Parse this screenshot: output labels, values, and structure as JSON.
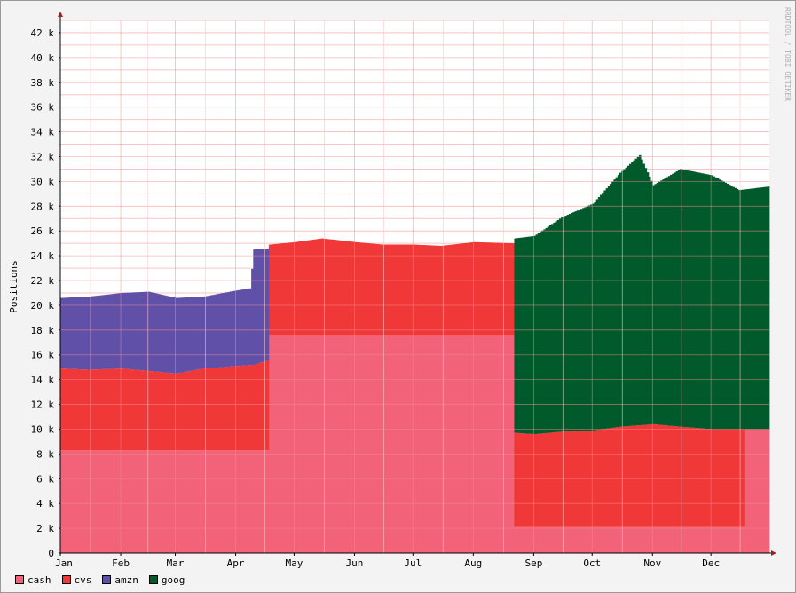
{
  "chart_data": {
    "type": "area",
    "stacked": true,
    "ylabel": "Positions",
    "watermark": "RRDTOOL / TOBI OETIKER",
    "ylim": [
      0,
      43000
    ],
    "y_ticks": [
      0,
      2000,
      4000,
      6000,
      8000,
      10000,
      12000,
      14000,
      16000,
      18000,
      20000,
      22000,
      24000,
      26000,
      28000,
      30000,
      32000,
      34000,
      36000,
      38000,
      40000,
      42000
    ],
    "y_tick_labels": [
      "0",
      "2 k",
      "4 k",
      "6 k",
      "8 k",
      "10 k",
      "12 k",
      "14 k",
      "16 k",
      "18 k",
      "20 k",
      "22 k",
      "24 k",
      "26 k",
      "28 k",
      "30 k",
      "32 k",
      "34 k",
      "36 k",
      "38 k",
      "40 k",
      "42 k"
    ],
    "x_month_labels": [
      "Jan",
      "Feb",
      "Mar",
      "Apr",
      "May",
      "Jun",
      "Jul",
      "Aug",
      "Sep",
      "Oct",
      "Nov",
      "Dec"
    ],
    "xlim": [
      "2013-01-01",
      "2013-12-31"
    ],
    "grid": true,
    "legend_position": "bottom-left",
    "series": [
      {
        "name": "cash",
        "color": "#f2637a",
        "segments": [
          {
            "from": "2013-01-01",
            "to": "2013-04-18",
            "x": [
              "2013-01-01",
              "2013-04-18"
            ],
            "y": [
              8300,
              8300
            ]
          },
          {
            "from": "2013-04-18",
            "to": "2013-08-22",
            "x": [
              "2013-04-18",
              "2013-08-22"
            ],
            "y": [
              17600,
              17600
            ]
          },
          {
            "from": "2013-08-22",
            "to": "2013-12-18",
            "x": [
              "2013-08-22",
              "2013-12-18"
            ],
            "y": [
              2100,
              2100
            ]
          },
          {
            "from": "2013-12-18",
            "to": "2013-12-31",
            "x": [
              "2013-12-18",
              "2013-12-31"
            ],
            "y": [
              10000,
              10000
            ]
          }
        ]
      },
      {
        "name": "cvs",
        "color": "#f03839",
        "segments": [
          {
            "from": "2013-01-01",
            "to": "2013-04-18",
            "x": [
              "2013-01-01",
              "2013-01-15",
              "2013-02-01",
              "2013-02-15",
              "2013-03-01",
              "2013-03-15",
              "2013-04-01",
              "2013-04-10",
              "2013-04-18"
            ],
            "y": [
              6600,
              6500,
              6600,
              6400,
              6200,
              6600,
              6800,
              6900,
              7300
            ]
          },
          {
            "from": "2013-04-18",
            "to": "2013-08-22",
            "x": [
              "2013-04-18",
              "2013-05-01",
              "2013-05-15",
              "2013-06-01",
              "2013-06-15",
              "2013-07-01",
              "2013-07-15",
              "2013-08-01",
              "2013-08-22"
            ],
            "y": [
              7300,
              7500,
              7800,
              7500,
              7300,
              7300,
              7200,
              7500,
              7400
            ]
          },
          {
            "from": "2013-08-22",
            "to": "2013-12-18",
            "x": [
              "2013-08-22",
              "2013-09-01",
              "2013-09-15",
              "2013-10-01",
              "2013-10-15",
              "2013-11-01",
              "2013-11-15",
              "2013-12-01",
              "2013-12-18"
            ],
            "y": [
              7600,
              7500,
              7700,
              7800,
              8100,
              8300,
              8100,
              7900,
              7900
            ]
          }
        ]
      },
      {
        "name": "amzn",
        "color": "#6050a8",
        "segments": [
          {
            "from": "2013-01-01",
            "to": "2013-04-18",
            "x": [
              "2013-01-01",
              "2013-01-15",
              "2013-02-01",
              "2013-02-15",
              "2013-03-01",
              "2013-03-15",
              "2013-04-01",
              "2013-04-08",
              "2013-04-10",
              "2013-04-18"
            ],
            "y": [
              5700,
              5900,
              6100,
              6400,
              6100,
              5800,
              6100,
              6200,
              9300,
              9000
            ]
          }
        ]
      },
      {
        "name": "goog",
        "color": "#005a2b",
        "segments": [
          {
            "from": "2013-08-22",
            "to": "2013-12-31",
            "x": [
              "2013-08-22",
              "2013-09-01",
              "2013-09-15",
              "2013-10-01",
              "2013-10-15",
              "2013-10-25",
              "2013-11-01",
              "2013-11-15",
              "2013-12-01",
              "2013-12-15",
              "2013-12-31"
            ],
            "y": [
              15700,
              16000,
              17300,
              18300,
              20500,
              21800,
              19300,
              20800,
              20500,
              19300,
              19600
            ]
          }
        ]
      }
    ]
  }
}
